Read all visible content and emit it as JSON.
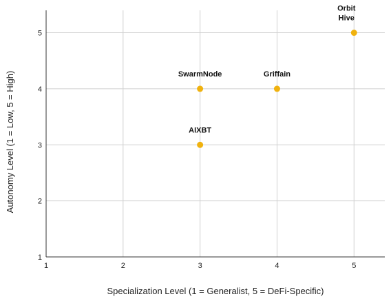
{
  "chart_data": {
    "type": "scatter",
    "title": "",
    "xlabel": "Specialization Level (1 = Generalist, 5 = DeFi-Specific)",
    "ylabel": "Autonomy Level (1 = Low, 5 = High)",
    "xlim": [
      1,
      5.4
    ],
    "ylim": [
      1,
      5.4
    ],
    "xticks": [
      "1",
      "2",
      "3",
      "4",
      "5"
    ],
    "yticks": [
      "1",
      "2",
      "3",
      "4",
      "5"
    ],
    "grid": true,
    "point_color": "#F0B20F",
    "points": [
      {
        "label": "SwarmNode",
        "x": 3,
        "y": 4
      },
      {
        "label": "Griffain",
        "x": 4,
        "y": 4
      },
      {
        "label": "AIXBT",
        "x": 3,
        "y": 3
      },
      {
        "label": "Orbit Hive",
        "x": 5,
        "y": 5
      }
    ]
  }
}
